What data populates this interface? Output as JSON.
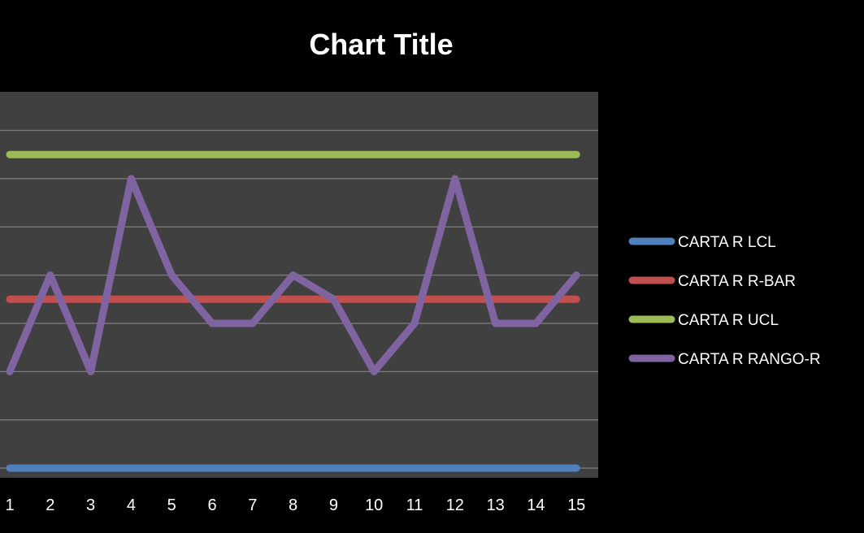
{
  "chart_data": {
    "type": "line",
    "title": "Chart Title",
    "xlabel": "",
    "ylabel": "",
    "categories": [
      "1",
      "2",
      "3",
      "4",
      "5",
      "6",
      "7",
      "8",
      "9",
      "10",
      "11",
      "12",
      "13",
      "14",
      "15"
    ],
    "ylim": [
      -0.2,
      7.8
    ],
    "y_gridlines": [
      0,
      1,
      2,
      3,
      4,
      5,
      6,
      7
    ],
    "grid": true,
    "legend_position": "right",
    "colors": {
      "page_background": "#000000",
      "plot_background": "#404040",
      "gridline": "#7f7f7f",
      "text": "#ffffff"
    },
    "series": [
      {
        "name": "CARTA R LCL",
        "color": "#4f81bd",
        "values": [
          0,
          0,
          0,
          0,
          0,
          0,
          0,
          0,
          0,
          0,
          0,
          0,
          0,
          0,
          0
        ]
      },
      {
        "name": "CARTA R R-BAR",
        "color": "#c0504d",
        "values": [
          3.5,
          3.5,
          3.5,
          3.5,
          3.5,
          3.5,
          3.5,
          3.5,
          3.5,
          3.5,
          3.5,
          3.5,
          3.5,
          3.5,
          3.5
        ]
      },
      {
        "name": "CARTA R UCL",
        "color": "#9bbb59",
        "values": [
          6.5,
          6.5,
          6.5,
          6.5,
          6.5,
          6.5,
          6.5,
          6.5,
          6.5,
          6.5,
          6.5,
          6.5,
          6.5,
          6.5,
          6.5
        ]
      },
      {
        "name": "CARTA R RANGO-R",
        "color": "#8064a2",
        "values": [
          2,
          4,
          2,
          6,
          4,
          3,
          3,
          4,
          3.5,
          2,
          3,
          6,
          3,
          3,
          4
        ]
      }
    ]
  }
}
